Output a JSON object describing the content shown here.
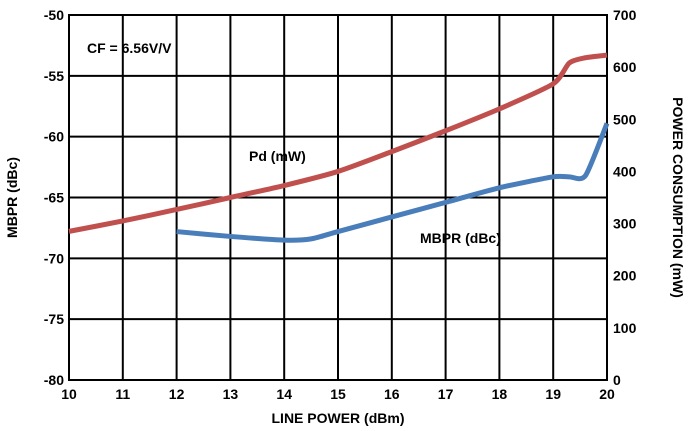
{
  "chart_data": {
    "type": "line",
    "xlabel": "LINE POWER (dBm)",
    "ylabel": "MBPR (dBc)",
    "y2label": "POWER CONSUMPTION (mW)",
    "xlim": [
      10,
      20
    ],
    "ylim": [
      -80,
      -50
    ],
    "y2lim": [
      0,
      700
    ],
    "xticks": [
      "10",
      "11",
      "12",
      "13",
      "14",
      "15",
      "16",
      "17",
      "18",
      "19",
      "20"
    ],
    "yticks": [
      "-50",
      "-55",
      "-60",
      "-65",
      "-70",
      "-75",
      "-80"
    ],
    "y2ticks": [
      "700",
      "600",
      "500",
      "400",
      "300",
      "200",
      "100",
      "0"
    ],
    "grid": true,
    "annotations": {
      "cf": "CF = 6.56V/V",
      "pd": "Pd (mW)",
      "mbpr": "MBPR (dBc)"
    },
    "series": [
      {
        "name": "Pd (mW)",
        "axis": "right",
        "color": "#c0504d",
        "x": [
          10,
          11,
          12,
          13,
          14,
          15,
          16,
          17,
          18,
          19,
          19.3,
          19.6,
          20
        ],
        "y": [
          285,
          305,
          327,
          350,
          373,
          400,
          438,
          478,
          520,
          568,
          608,
          618,
          623
        ]
      },
      {
        "name": "MBPR (dBc)",
        "axis": "left",
        "color": "#4a7ebb",
        "x": [
          12,
          13,
          14,
          14.5,
          15,
          16,
          17,
          18,
          19,
          19.3,
          19.6,
          20
        ],
        "y": [
          -67.8,
          -68.2,
          -68.5,
          -68.4,
          -67.8,
          -66.6,
          -65.4,
          -64.2,
          -63.3,
          -63.3,
          -63.2,
          -58.9
        ]
      }
    ]
  }
}
